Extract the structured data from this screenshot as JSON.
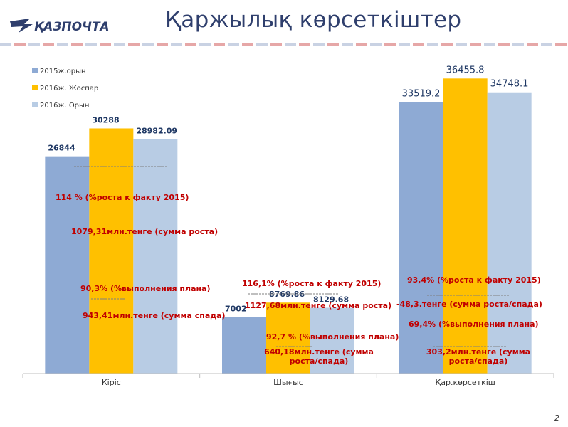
{
  "header": {
    "logo_text": "ҚАЗПОЧТА",
    "title": "Қаржылық көрсеткіштер"
  },
  "page_number": "2",
  "colors": {
    "series_2015": "#8eaad4",
    "series_2016_plan": "#ffc000",
    "series_2016_actual": "#b8cce4",
    "annotation": "#c00000",
    "value_label": "#1f3864",
    "title": "#2f3f6d"
  },
  "chart_data": {
    "type": "bar",
    "categories": [
      "Кіріс",
      "Шығыс",
      "Қар.көрсеткіш"
    ],
    "series": [
      {
        "name": "2015ж.орын",
        "values": [
          26844,
          7002,
          33519.2
        ],
        "labels": [
          "26844",
          "7002",
          "33519.2"
        ]
      },
      {
        "name": "2016ж. Жоспар",
        "values": [
          30288,
          8769.86,
          36455.8
        ],
        "labels": [
          "30288",
          "8769.86",
          "36455.8"
        ]
      },
      {
        "name": "2016ж. Орын",
        "values": [
          28982.09,
          8129.68,
          34748.1
        ],
        "labels": [
          "28982.09",
          "8129.68",
          "34748.1"
        ]
      }
    ],
    "legend": "top-left",
    "grid": false,
    "ylim": [
      0,
      40000
    ],
    "annotations": [
      "114 % (%роста к факту 2015)",
      "1079,31млн.тенге (сумма роста)",
      "90,3% (%выполнения плана)",
      "943,41млн.тенге (сумма спада)",
      "116,1% (%роста к факту 2015)",
      "1127,68млн.тенге (сумма роста)",
      "92,7 % (%выполнения плана)",
      "640,18млн.тенге (сумма роста/спада)",
      "93,4% (%роста к факту 2015)",
      "-48,3.тенге (сумма роста/спада)",
      "69,4% (%выполнения плана)",
      "303,2млн.тенге (сумма роста/спада)"
    ]
  }
}
